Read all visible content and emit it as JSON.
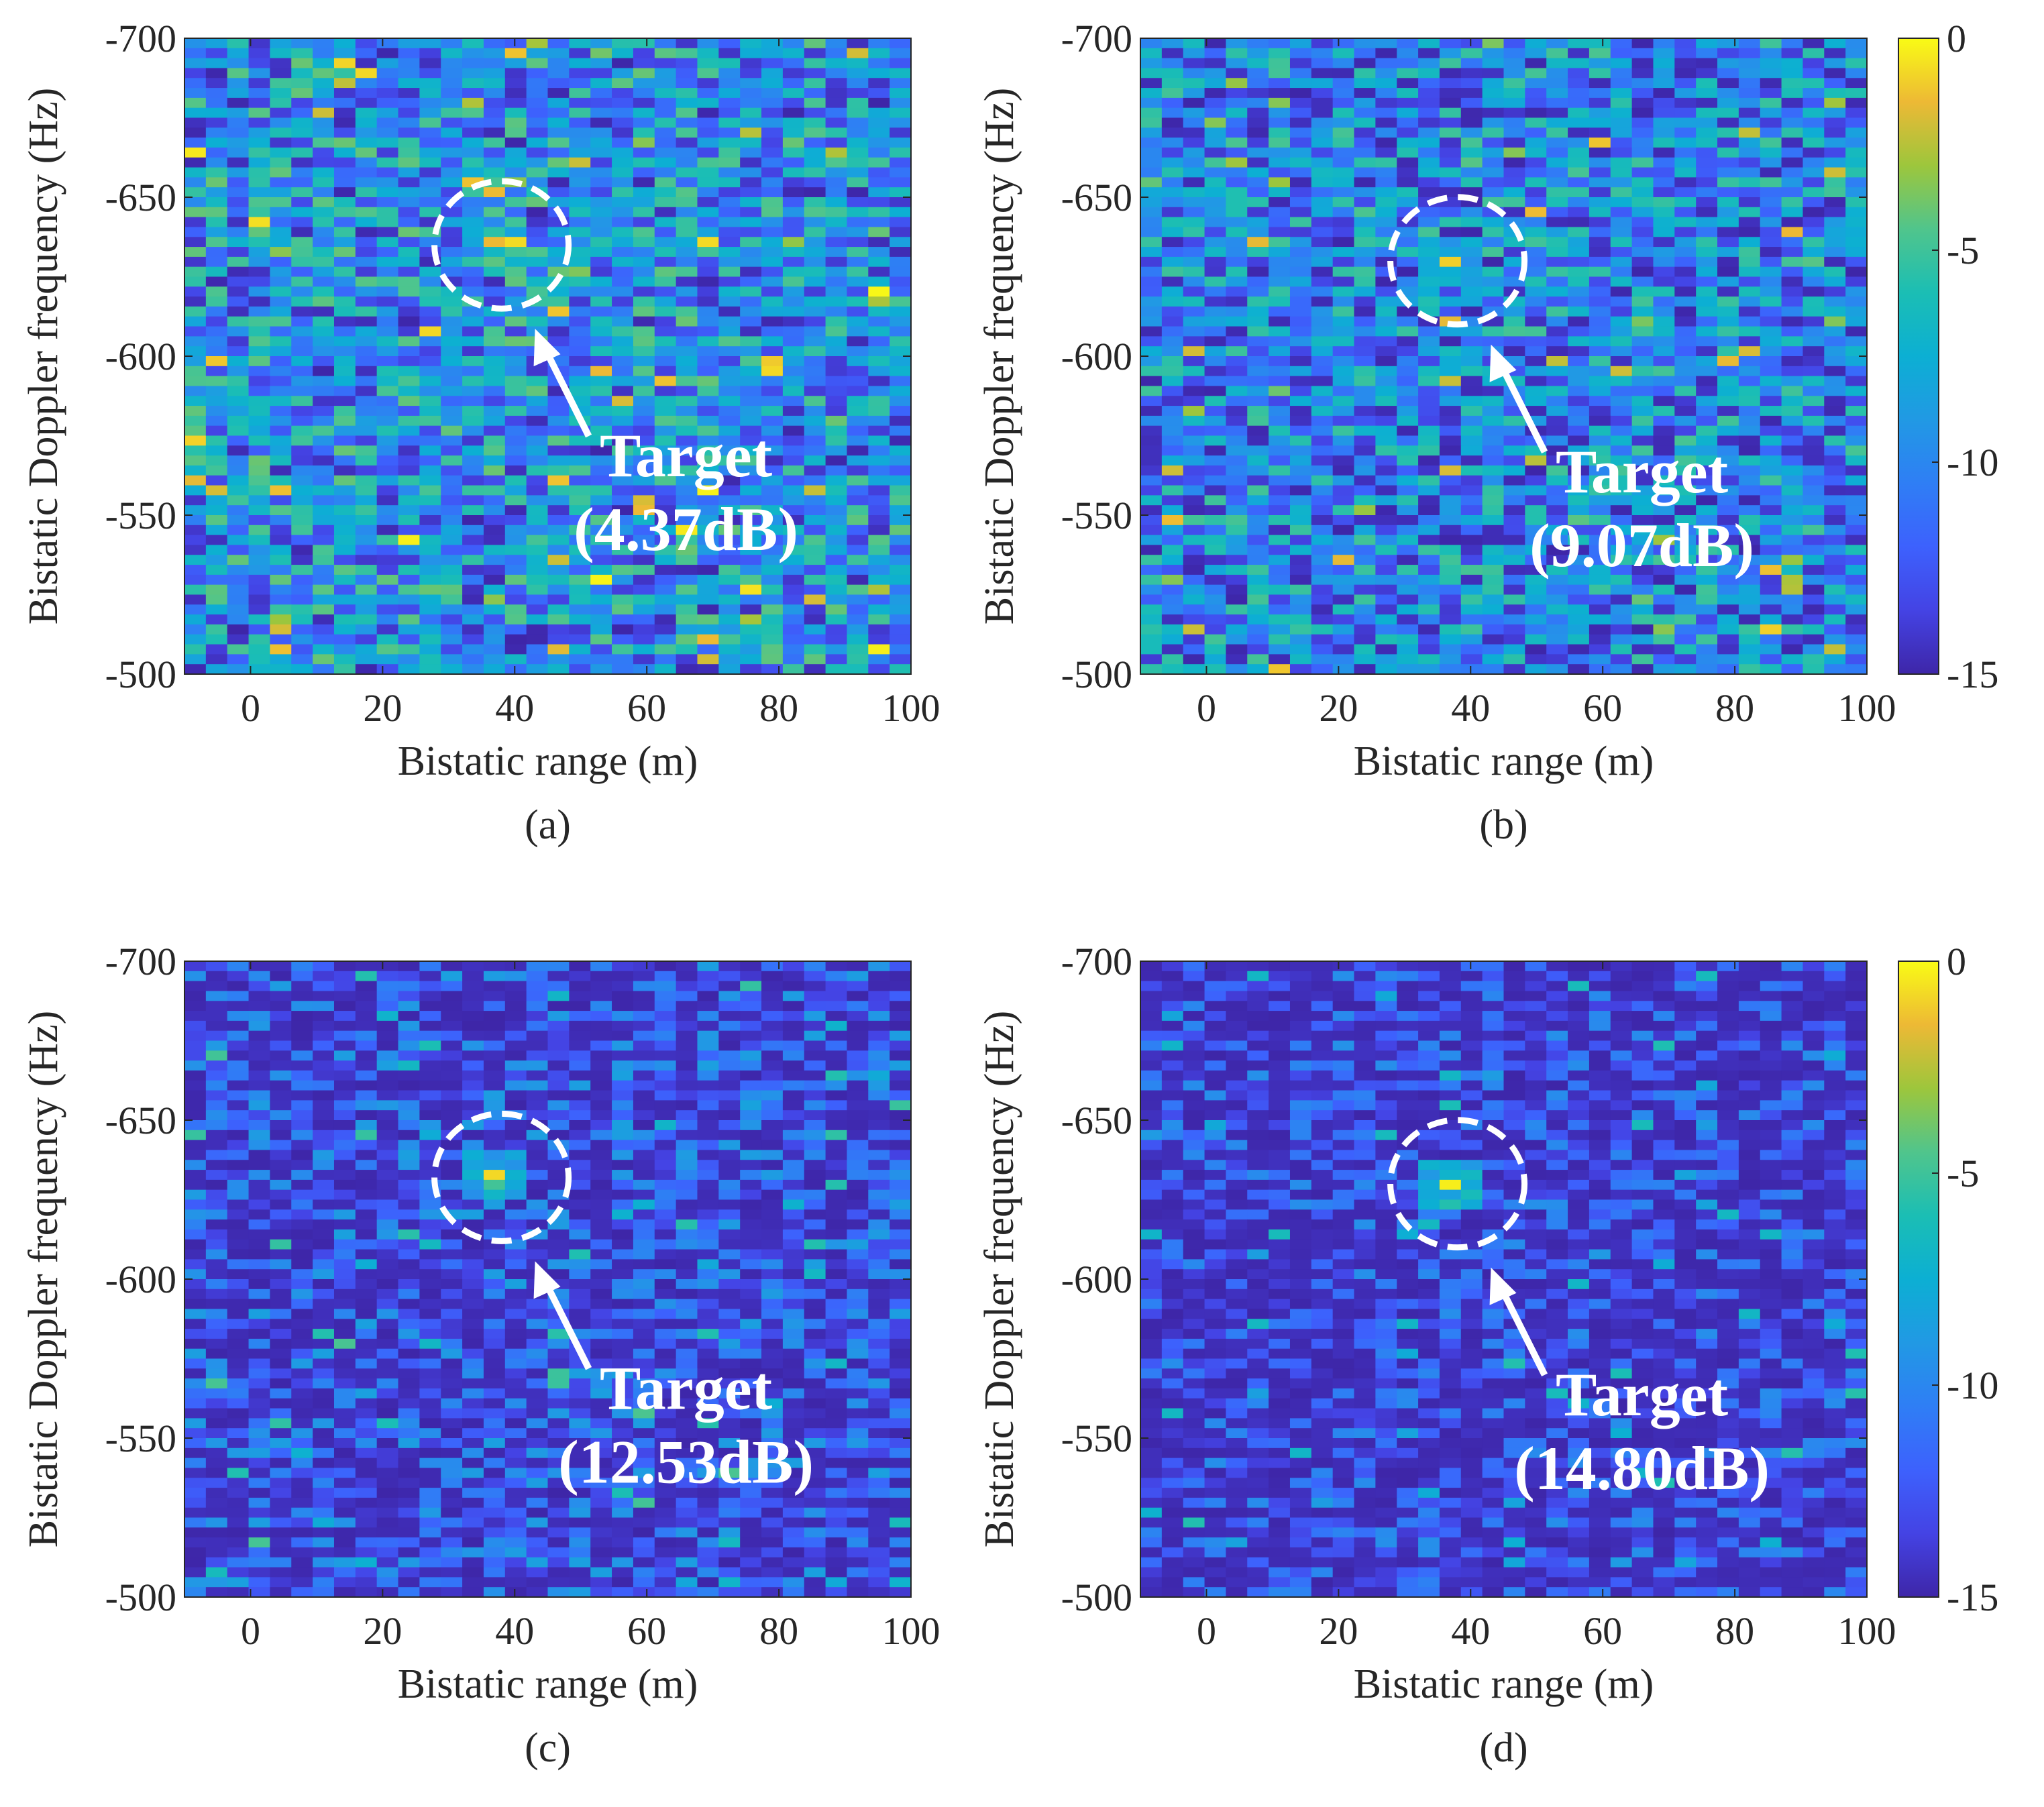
{
  "chart_data": [
    {
      "type": "heatmap",
      "panel_label": "(a)",
      "xlabel": "Bistatic range (m)",
      "ylabel": "Bistatic Doppler frequency (Hz)",
      "xlim": [
        -10,
        100
      ],
      "ylim": [
        -500,
        -700
      ],
      "xticks": [
        0,
        20,
        40,
        60,
        80,
        100
      ],
      "yticks": [
        -700,
        -650,
        -600,
        -550,
        -500
      ],
      "annotation": {
        "line1": "Target",
        "line2": "(4.37dB)",
        "target_range_m": 38,
        "target_doppler_hz": -635
      },
      "seed": 11,
      "noise_offset_db": 0.0,
      "peak_db": -1.5,
      "colorbar": false
    },
    {
      "type": "heatmap",
      "panel_label": "(b)",
      "xlabel": "Bistatic range (m)",
      "ylabel": "Bistatic Doppler frequency (Hz)",
      "xlim": [
        -10,
        100
      ],
      "ylim": [
        -500,
        -700
      ],
      "xticks": [
        0,
        20,
        40,
        60,
        80,
        100
      ],
      "yticks": [
        -700,
        -650,
        -600,
        -550,
        -500
      ],
      "annotation": {
        "line1": "Target",
        "line2": "(9.07dB)",
        "target_range_m": 38,
        "target_doppler_hz": -630
      },
      "seed": 11,
      "noise_offset_db": -0.8,
      "peak_db": -1.0,
      "colorbar": true,
      "colorbar_ticks": [
        0,
        -5,
        -10,
        -15
      ],
      "clim": [
        -15,
        0
      ]
    },
    {
      "type": "heatmap",
      "panel_label": "(c)",
      "xlabel": "Bistatic range (m)",
      "ylabel": "Bistatic Doppler frequency (Hz)",
      "xlim": [
        -10,
        100
      ],
      "ylim": [
        -500,
        -700
      ],
      "xticks": [
        0,
        20,
        40,
        60,
        80,
        100
      ],
      "yticks": [
        -700,
        -650,
        -600,
        -550,
        -500
      ],
      "annotation": {
        "line1": "Target",
        "line2": "(12.53dB)",
        "target_range_m": 38,
        "target_doppler_hz": -632
      },
      "seed": 11,
      "noise_offset_db": -4.5,
      "peak_db": -0.8,
      "colorbar": false
    },
    {
      "type": "heatmap",
      "panel_label": "(d)",
      "xlabel": "Bistatic range (m)",
      "ylabel": "Bistatic Doppler frequency (Hz)",
      "xlim": [
        -10,
        100
      ],
      "ylim": [
        -500,
        -700
      ],
      "xticks": [
        0,
        20,
        40,
        60,
        80,
        100
      ],
      "yticks": [
        -700,
        -650,
        -600,
        -550,
        -500
      ],
      "annotation": {
        "line1": "Target",
        "line2": "(14.80dB)",
        "target_range_m": 38,
        "target_doppler_hz": -630
      },
      "seed": 11,
      "noise_offset_db": -5.5,
      "peak_db": -0.3,
      "colorbar": true,
      "colorbar_ticks": [
        0,
        -5,
        -10,
        -15
      ],
      "clim": [
        -15,
        0
      ]
    }
  ]
}
